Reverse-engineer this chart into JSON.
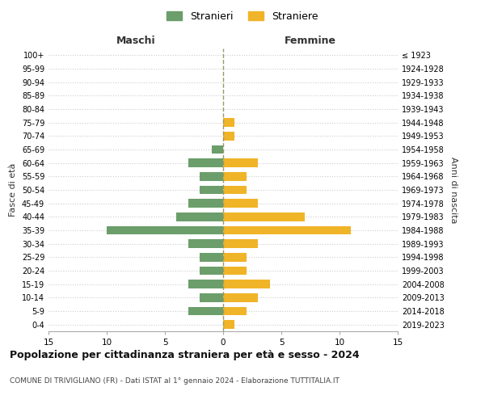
{
  "age_groups": [
    "100+",
    "95-99",
    "90-94",
    "85-89",
    "80-84",
    "75-79",
    "70-74",
    "65-69",
    "60-64",
    "55-59",
    "50-54",
    "45-49",
    "40-44",
    "35-39",
    "30-34",
    "25-29",
    "20-24",
    "15-19",
    "10-14",
    "5-9",
    "0-4"
  ],
  "birth_years": [
    "≤ 1923",
    "1924-1928",
    "1929-1933",
    "1934-1938",
    "1939-1943",
    "1944-1948",
    "1949-1953",
    "1954-1958",
    "1959-1963",
    "1964-1968",
    "1969-1973",
    "1974-1978",
    "1979-1983",
    "1984-1988",
    "1989-1993",
    "1994-1998",
    "1999-2003",
    "2004-2008",
    "2009-2013",
    "2014-2018",
    "2019-2023"
  ],
  "maschi": [
    0,
    0,
    0,
    0,
    0,
    0,
    0,
    1,
    3,
    2,
    2,
    3,
    4,
    10,
    3,
    2,
    2,
    3,
    2,
    3,
    0
  ],
  "femmine": [
    0,
    0,
    0,
    0,
    0,
    1,
    1,
    0,
    3,
    2,
    2,
    3,
    7,
    11,
    3,
    2,
    2,
    4,
    3,
    2,
    1
  ],
  "color_maschi": "#6b9e6b",
  "color_femmine": "#f0b429",
  "title": "Popolazione per cittadinanza straniera per età e sesso - 2024",
  "subtitle": "COMUNE DI TRIVIGLIANO (FR) - Dati ISTAT al 1° gennaio 2024 - Elaborazione TUTTITALIA.IT",
  "xlabel_left": "Maschi",
  "xlabel_right": "Femmine",
  "ylabel_left": "Fasce di età",
  "ylabel_right": "Anni di nascita",
  "legend_maschi": "Stranieri",
  "legend_femmine": "Straniere",
  "xlim": 15,
  "background_color": "#ffffff",
  "grid_color": "#cccccc"
}
